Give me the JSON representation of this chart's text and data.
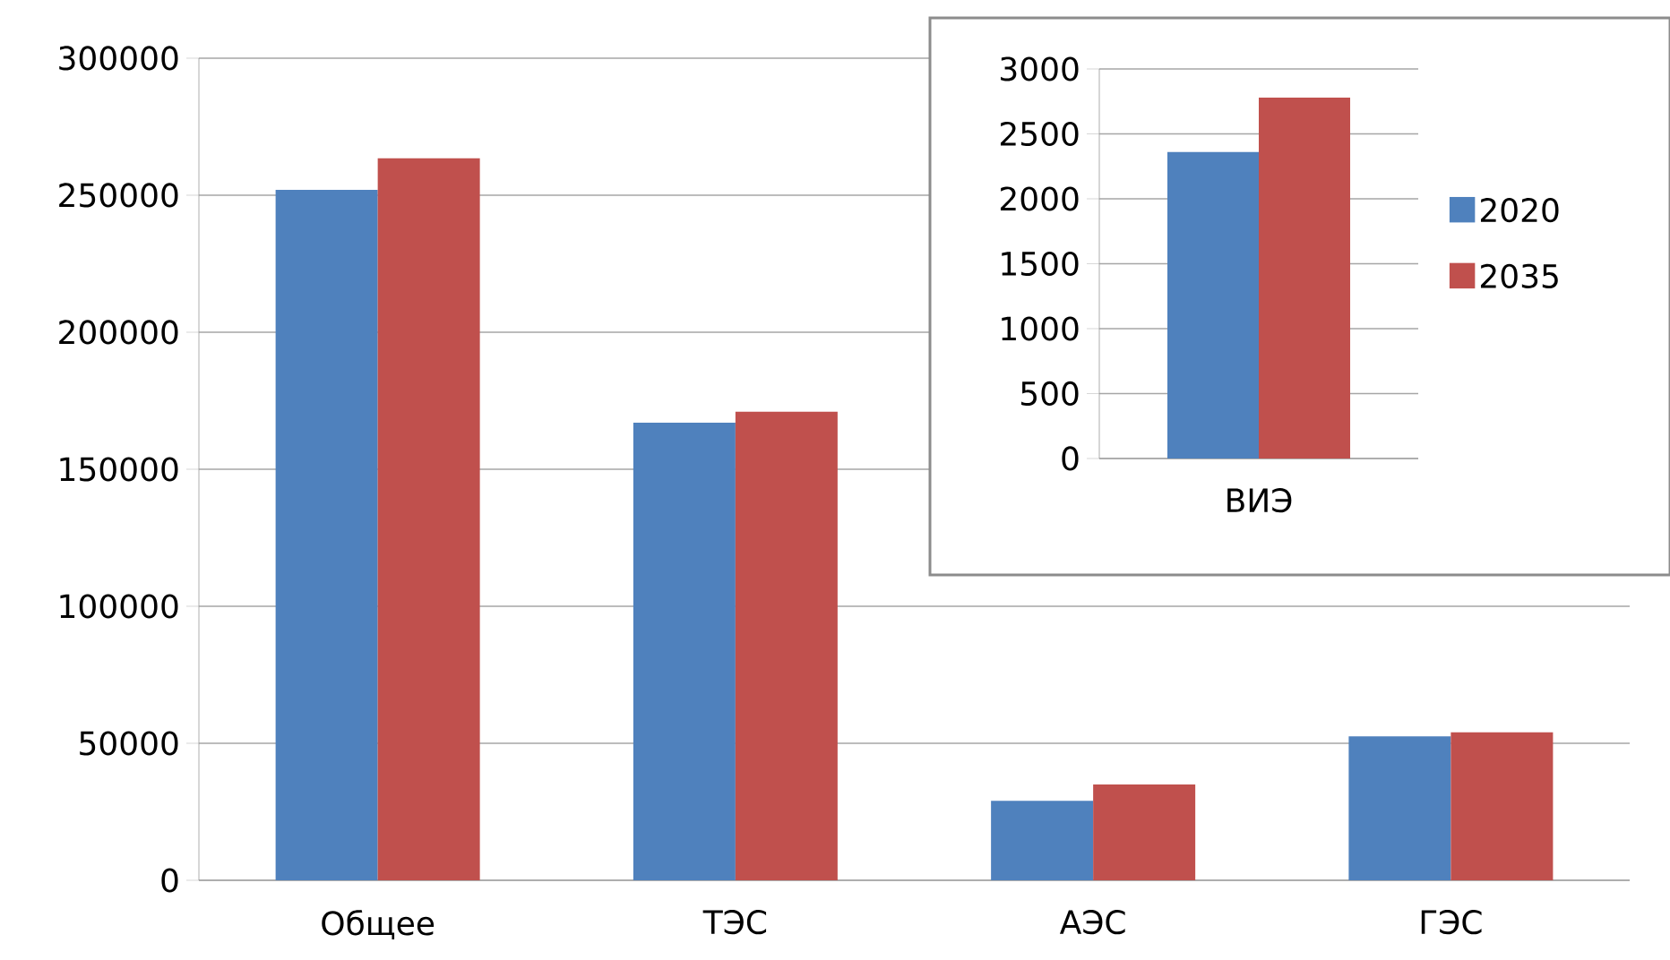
{
  "chart_data": [
    {
      "type": "bar",
      "categories": [
        "Общее",
        "ТЭС",
        "АЭС",
        "ГЭС"
      ],
      "series": [
        {
          "color": "#4f81bd",
          "values": [
            252000,
            167000,
            29000,
            52500
          ]
        },
        {
          "color": "#c0504d",
          "values": [
            263500,
            171000,
            35000,
            54000
          ]
        }
      ],
      "ylim": [
        0,
        300000
      ],
      "yticks": [
        0,
        50000,
        100000,
        150000,
        200000,
        250000,
        300000
      ],
      "grid": "y"
    },
    {
      "type": "bar",
      "categories": [
        "ВИЭ"
      ],
      "series": [
        {
          "name": "2020",
          "color": "#4f81bd",
          "values": [
            2360
          ]
        },
        {
          "name": "2035",
          "color": "#c0504d",
          "values": [
            2780
          ]
        }
      ],
      "ylim": [
        0,
        3000
      ],
      "yticks": [
        0,
        500,
        1000,
        1500,
        2000,
        2500,
        3000
      ],
      "grid": "y",
      "legend": "right"
    }
  ]
}
